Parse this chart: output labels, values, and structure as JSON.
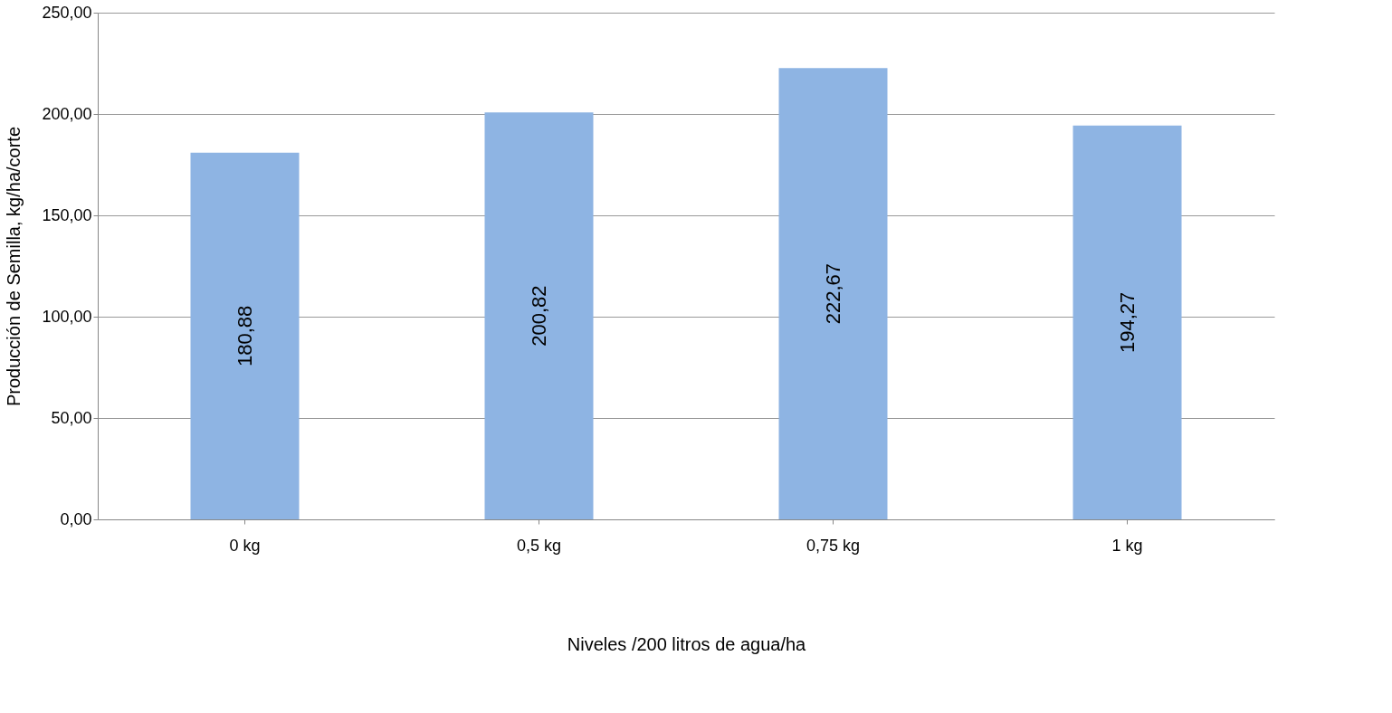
{
  "chart_data": {
    "type": "bar",
    "xlabel": "Niveles /200 litros de agua/ha",
    "ylabel": "Producción de Semilla, kg/ha/corte",
    "categories": [
      "0 kg",
      "0,5 kg",
      "0,75 kg",
      "1 kg"
    ],
    "series": [
      {
        "color": "#8eb4e3",
        "values": [
          180.88,
          200.82,
          222.67,
          194.27
        ],
        "value_labels": [
          "180,88",
          "200,82",
          "222,67",
          "194,27"
        ]
      }
    ],
    "ylim": [
      0,
      250
    ],
    "yticks": [
      {
        "value": 0,
        "label": "0,00"
      },
      {
        "value": 50,
        "label": "50,00"
      },
      {
        "value": 100,
        "label": "100,00"
      },
      {
        "value": 150,
        "label": "150,00"
      },
      {
        "value": 200,
        "label": "200,00"
      },
      {
        "value": 250,
        "label": "250,00"
      }
    ],
    "grid": "y"
  }
}
